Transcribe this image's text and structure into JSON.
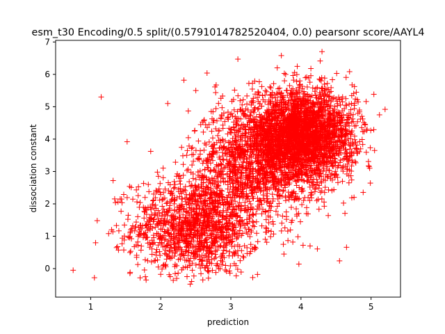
{
  "chart_data": {
    "type": "scatter",
    "title": "esm_t30 Encoding/0.5 split/(0.5791014782520404, 0.0) pearsonr score/AAYL4",
    "xlabel": "prediction",
    "ylabel": "dissociation constant",
    "xlim": [
      0.5,
      5.42
    ],
    "ylim": [
      -0.88,
      7.05
    ],
    "xticks": [
      1,
      2,
      3,
      4,
      5
    ],
    "yticks": [
      0,
      1,
      2,
      3,
      4,
      5,
      6,
      7
    ],
    "grid": false,
    "marker": "+",
    "color": "#ff0000",
    "clusters": [
      {
        "center": [
          2.5,
          1.3
        ],
        "spread": [
          0.45,
          0.75
        ],
        "count": 1300
      },
      {
        "center": [
          3.3,
          3.2
        ],
        "spread": [
          0.45,
          0.9
        ],
        "count": 1100
      },
      {
        "center": [
          4.0,
          4.1
        ],
        "spread": [
          0.38,
          0.7
        ],
        "count": 2800
      }
    ],
    "points": [
      [
        0.75,
        -0.05
      ],
      [
        1.15,
        5.3
      ],
      [
        1.32,
        2.72
      ],
      [
        1.52,
        3.92
      ],
      [
        1.07,
        0.8
      ],
      [
        2.42,
        -0.48
      ],
      [
        3.38,
        -0.18
      ],
      [
        3.97,
        0.14
      ],
      [
        4.55,
        0.24
      ],
      [
        1.78,
        -0.25
      ],
      [
        5.2,
        4.92
      ],
      [
        5.12,
        4.75
      ],
      [
        5.05,
        3.65
      ],
      [
        4.3,
        6.7
      ],
      [
        3.72,
        6.58
      ],
      [
        3.1,
        6.47
      ],
      [
        2.66,
        6.04
      ],
      [
        2.33,
        5.82
      ],
      [
        2.5,
        5.5
      ],
      [
        4.47,
        5.28
      ],
      [
        4.03,
        0.72
      ],
      [
        4.13,
        0.7
      ],
      [
        4.65,
        0.66
      ],
      [
        2.1,
        5.1
      ],
      [
        4.98,
        3.1
      ]
    ]
  }
}
